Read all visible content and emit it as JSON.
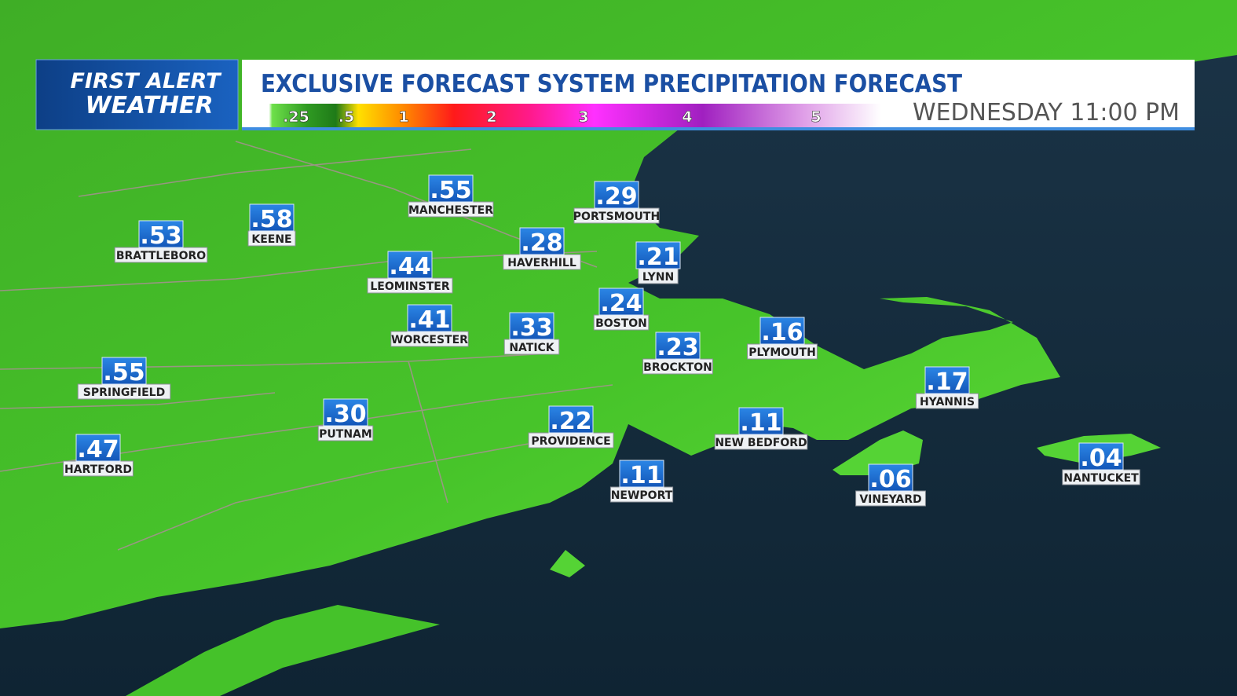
{
  "logo": {
    "line1": "FIRST ALERT",
    "line2": "WEATHER"
  },
  "header": {
    "title": "EXCLUSIVE FORECAST SYSTEM PRECIPITATION FORECAST",
    "time": "WEDNESDAY 11:00 PM"
  },
  "legend": {
    "labels": [
      ".25",
      ".5",
      "1",
      "2",
      "3",
      "4",
      "5"
    ]
  },
  "cities": [
    {
      "name": "MANCHESTER",
      "value": ".55"
    },
    {
      "name": "PORTSMOUTH",
      "value": ".29"
    },
    {
      "name": "KEENE",
      "value": ".58"
    },
    {
      "name": "BRATTLEBORO",
      "value": ".53"
    },
    {
      "name": "HAVERHILL",
      "value": ".28"
    },
    {
      "name": "LYNN",
      "value": ".21"
    },
    {
      "name": "LEOMINSTER",
      "value": ".44"
    },
    {
      "name": "BOSTON",
      "value": ".24"
    },
    {
      "name": "WORCESTER",
      "value": ".41"
    },
    {
      "name": "NATICK",
      "value": ".33"
    },
    {
      "name": "PLYMOUTH",
      "value": ".16"
    },
    {
      "name": "BROCKTON",
      "value": ".23"
    },
    {
      "name": "SPRINGFIELD",
      "value": ".55"
    },
    {
      "name": "HYANNIS",
      "value": ".17"
    },
    {
      "name": "PUTNAM",
      "value": ".30"
    },
    {
      "name": "PROVIDENCE",
      "value": ".22"
    },
    {
      "name": "NEW BEDFORD",
      "value": ".11"
    },
    {
      "name": "HARTFORD",
      "value": ".47"
    },
    {
      "name": "NEWPORT",
      "value": ".11"
    },
    {
      "name": "VINEYARD",
      "value": ".06"
    },
    {
      "name": "NANTUCKET",
      "value": ".04"
    }
  ]
}
